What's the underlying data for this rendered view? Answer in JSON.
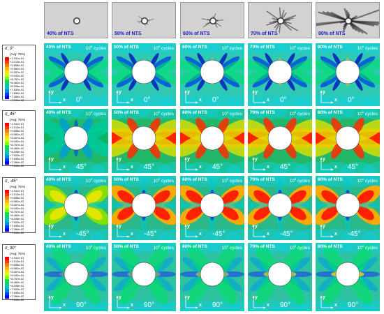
{
  "photos": [
    {
      "label": "40% of NTS",
      "damage": 0
    },
    {
      "label": "50% of NTS",
      "damage": 0.15
    },
    {
      "label": "60% of NTS",
      "damage": 0.3
    },
    {
      "label": "70% of NTS",
      "damage": 0.6
    },
    {
      "label": "80% of NTS",
      "damage": 1
    }
  ],
  "legend": {
    "avg": "(Avg: 75%)",
    "values": [
      "+1.041e-01",
      "+1.013e-01",
      "+9.858e-02",
      "+9.582e-02",
      "+9.307e-02",
      "+9.032e-02",
      "+8.757e-02",
      "+8.483e-02",
      "+8.208e-02",
      "+7.933e-02",
      "+7.659e-02",
      "+7.384e-02",
      "+7.109e-02"
    ],
    "colors": [
      "#ff0000",
      "#ff3a00",
      "#ff7a00",
      "#ffb300",
      "#ffe300",
      "#d6ff00",
      "#7cff00",
      "#00e050",
      "#00d08a",
      "#00c0c0",
      "#0090e0",
      "#0040f0",
      "#0000ff"
    ]
  },
  "legend_symbols": [
    "σ_0°",
    "σ_45°",
    "σ_-45°",
    "σ_90°"
  ],
  "rows": [
    {
      "angle": "0°",
      "pattern": "zero"
    },
    {
      "angle": "45°",
      "pattern": "hot"
    },
    {
      "angle": "-45°",
      "pattern": "diag"
    },
    {
      "angle": "90°",
      "pattern": "ninety"
    }
  ],
  "cols": [
    {
      "pct": "40% of NTS",
      "cycles_base": "10",
      "cycles_exp": "6",
      "cycles_word": "cycles"
    },
    {
      "pct": "50% of NTS",
      "cycles_base": "10",
      "cycles_exp": "6",
      "cycles_word": "cycles"
    },
    {
      "pct": "60% of NTS",
      "cycles_base": "10",
      "cycles_exp": "6",
      "cycles_word": "cycles"
    },
    {
      "pct": "70% of NTS",
      "cycles_base": "10",
      "cycles_exp": "6",
      "cycles_word": "cycles"
    },
    {
      "pct": "80% of NTS",
      "cycles_base": "10",
      "cycles_exp": "6",
      "cycles_word": "cycles"
    }
  ],
  "axes": {
    "y": "y",
    "x": "x"
  }
}
